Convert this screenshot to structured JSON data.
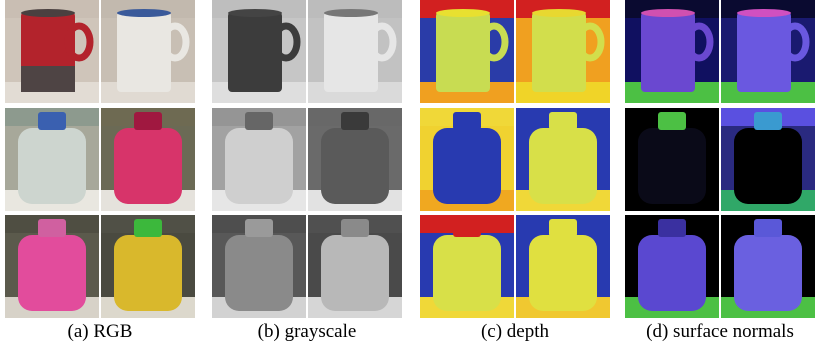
{
  "panels": [
    {
      "caption": "(a) RGB"
    },
    {
      "caption": "(b) grayscale"
    },
    {
      "caption": "(c) depth"
    },
    {
      "caption": "(d) surface normals"
    }
  ]
}
